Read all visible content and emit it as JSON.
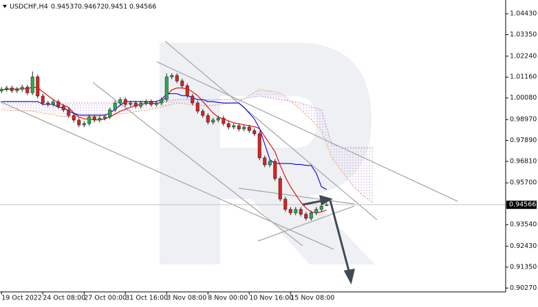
{
  "chart_data": {
    "type": "candlestick",
    "title": "USDCHF,H4",
    "ylim": [
      0.9007,
      1.0514
    ],
    "xlim": [
      -0.3,
      97.7
    ],
    "yticks": [
      {
        "value": 1.0443,
        "label": "1.04430"
      },
      {
        "value": 1.0335,
        "label": "1.03350"
      },
      {
        "value": 1.0224,
        "label": "1.02240"
      },
      {
        "value": 1.0116,
        "label": "1.01160"
      },
      {
        "value": 1.0008,
        "label": "1.00080"
      },
      {
        "value": 0.9897,
        "label": "0.98970"
      },
      {
        "value": 0.9789,
        "label": "0.97890"
      },
      {
        "value": 0.9681,
        "label": "0.96810"
      },
      {
        "value": 0.957,
        "label": "0.95700"
      },
      {
        "value": 0.9354,
        "label": "0.93540"
      },
      {
        "value": 0.9243,
        "label": "0.92430"
      },
      {
        "value": 0.9135,
        "label": "0.91350"
      },
      {
        "value": 0.9027,
        "label": "0.90270"
      }
    ],
    "xticks": [
      {
        "value": 0,
        "label": "19 Oct 2022"
      },
      {
        "value": 8,
        "label": "24 Oct 08:00"
      },
      {
        "value": 16,
        "label": "27 Oct 00:00"
      },
      {
        "value": 24,
        "label": "31 Oct 16:00"
      },
      {
        "value": 32,
        "label": "3 Nov 08:00"
      },
      {
        "value": 40,
        "label": "8 Nov 00:00"
      },
      {
        "value": 48,
        "label": "10 Nov 16:00"
      },
      {
        "value": 56,
        "label": "15 Nov 08:00"
      }
    ],
    "up_color": "#22b14c",
    "down_color": "#e02020",
    "candles": [
      [
        1.0045,
        1.0065,
        1.0033,
        1.0053
      ],
      [
        1.0053,
        1.0072,
        1.0041,
        1.006
      ],
      [
        1.006,
        1.0072,
        1.0034,
        1.0046
      ],
      [
        1.0046,
        1.0065,
        1.0034,
        1.0053
      ],
      [
        1.0053,
        1.0076,
        1.0041,
        1.0064
      ],
      [
        1.0064,
        1.0076,
        1.0023,
        1.0035
      ],
      [
        1.0035,
        1.0145,
        1.0023,
        1.0117
      ],
      [
        1.0117,
        1.0129,
        1.0006,
        1.0018
      ],
      [
        1.0018,
        1.003,
        0.997,
        0.9982
      ],
      [
        0.9982,
        0.9994,
        0.9963,
        0.9975
      ],
      [
        0.9975,
        1.0001,
        0.9963,
        0.9989
      ],
      [
        0.9989,
        1.0001,
        0.9953,
        0.9965
      ],
      [
        0.9965,
        0.9977,
        0.9935,
        0.9947
      ],
      [
        0.9947,
        0.9959,
        0.9906,
        0.9918
      ],
      [
        0.9918,
        0.993,
        0.9882,
        0.9894
      ],
      [
        0.9894,
        0.9906,
        0.9857,
        0.9869
      ],
      [
        0.9869,
        0.9888,
        0.9857,
        0.9876
      ],
      [
        0.9876,
        0.9923,
        0.9864,
        0.9911
      ],
      [
        0.9911,
        0.9923,
        0.9882,
        0.9894
      ],
      [
        0.9894,
        0.9916,
        0.9882,
        0.9904
      ],
      [
        0.9904,
        0.9923,
        0.9892,
        0.9911
      ],
      [
        0.9911,
        0.9959,
        0.9899,
        0.9947
      ],
      [
        0.9947,
        0.9994,
        0.9935,
        0.9982
      ],
      [
        0.9982,
        1.0012,
        0.997,
        1.0
      ],
      [
        1.0,
        1.0012,
        0.9963,
        0.9975
      ],
      [
        0.9975,
        0.9994,
        0.9963,
        0.9982
      ],
      [
        0.9982,
        0.9994,
        0.9953,
        0.9965
      ],
      [
        0.9965,
        0.9994,
        0.9953,
        0.9982
      ],
      [
        0.9982,
        1.0001,
        0.997,
        0.9989
      ],
      [
        0.9989,
        1.0001,
        0.9963,
        0.9975
      ],
      [
        0.9975,
        0.9994,
        0.9963,
        0.9982
      ],
      [
        0.9982,
        1.0012,
        0.997,
        1.0
      ],
      [
        1.0,
        1.0135,
        0.9988,
        1.0117
      ],
      [
        1.0117,
        1.0136,
        1.0105,
        1.0124
      ],
      [
        1.0124,
        1.0136,
        1.0084,
        1.0096
      ],
      [
        1.0096,
        1.0108,
        1.0059,
        1.0071
      ],
      [
        1.0071,
        1.0083,
        1.0006,
        1.0018
      ],
      [
        1.0018,
        1.003,
        0.997,
        0.9982
      ],
      [
        0.9982,
        0.9994,
        0.9928,
        0.994
      ],
      [
        0.994,
        0.9952,
        0.9906,
        0.9918
      ],
      [
        0.9918,
        0.993,
        0.9871,
        0.9883
      ],
      [
        0.9883,
        0.9906,
        0.9871,
        0.9894
      ],
      [
        0.9894,
        0.9916,
        0.9882,
        0.9904
      ],
      [
        0.9904,
        0.9916,
        0.9864,
        0.9876
      ],
      [
        0.9876,
        0.9888,
        0.9846,
        0.9858
      ],
      [
        0.9858,
        0.9877,
        0.9846,
        0.9865
      ],
      [
        0.9865,
        0.9877,
        0.9836,
        0.9848
      ],
      [
        0.9848,
        0.987,
        0.9836,
        0.9858
      ],
      [
        0.9858,
        0.987,
        0.9828,
        0.984
      ],
      [
        0.984,
        0.9852,
        0.9811,
        0.9823
      ],
      [
        0.9823,
        0.9835,
        0.9687,
        0.9699
      ],
      [
        0.9699,
        0.9711,
        0.9651,
        0.9663
      ],
      [
        0.9663,
        0.9693,
        0.9651,
        0.9681
      ],
      [
        0.9681,
        0.9693,
        0.958,
        0.9592
      ],
      [
        0.9592,
        0.9604,
        0.9474,
        0.9486
      ],
      [
        0.9486,
        0.9498,
        0.9421,
        0.9433
      ],
      [
        0.9433,
        0.9445,
        0.9403,
        0.9415
      ],
      [
        0.9415,
        0.9445,
        0.9403,
        0.9433
      ],
      [
        0.9433,
        0.9445,
        0.9396,
        0.9408
      ],
      [
        0.9408,
        0.942,
        0.9375,
        0.9387
      ],
      [
        0.9387,
        0.9427,
        0.9375,
        0.9415
      ],
      [
        0.9415,
        0.9445,
        0.9403,
        0.9433
      ],
      [
        0.9433,
        0.9462,
        0.9421,
        0.945
      ],
      [
        0.94537,
        0.94672,
        0.9451,
        0.94566
      ]
    ],
    "lines": [
      {
        "color": "#e00000",
        "values": [
          1.005,
          1.0052,
          1.0054,
          1.0054,
          1.0056,
          1.0055,
          1.0065,
          1.006,
          1.004,
          1.002,
          1.0,
          0.9985,
          0.997,
          0.996,
          0.993,
          0.991,
          0.99,
          0.99,
          0.9895,
          0.9895,
          0.99,
          0.991,
          0.9925,
          0.994,
          0.995,
          0.996,
          0.997,
          0.9975,
          0.998,
          0.998,
          0.998,
          0.9985,
          1.002,
          1.005,
          1.006,
          1.006,
          1.0055,
          1.004,
          1.002,
          0.999,
          0.996,
          0.993,
          0.991,
          0.99,
          0.989,
          0.988,
          0.9875,
          0.987,
          0.9865,
          0.986,
          0.985,
          0.981,
          0.977,
          0.973,
          0.966,
          0.96,
          0.955,
          0.951,
          0.947,
          0.944,
          0.942,
          0.9415,
          0.942,
          0.943
        ]
      },
      {
        "color": "#0000e0",
        "values": [
          0.999,
          0.999,
          0.999,
          0.999,
          0.999,
          0.999,
          0.999,
          0.999,
          0.9975,
          0.9975,
          0.9975,
          0.996,
          0.996,
          0.994,
          0.993,
          0.992,
          0.992,
          0.992,
          0.992,
          0.992,
          0.992,
          0.993,
          0.995,
          0.997,
          0.999,
          0.999,
          0.999,
          0.999,
          0.999,
          0.999,
          0.999,
          1.0,
          1.003,
          1.003,
          1.003,
          1.002,
          1.002,
          1.001,
          1.0,
          1.0,
          0.999,
          0.999,
          0.9985,
          0.9982,
          0.9982,
          0.9982,
          0.9982,
          0.996,
          0.993,
          0.99,
          0.985,
          0.977,
          0.969,
          0.967,
          0.967,
          0.967,
          0.967,
          0.9665,
          0.9665,
          0.966,
          0.966,
          0.962,
          0.955,
          0.9535
        ]
      }
    ],
    "cloud": {
      "x": [
        0,
        6,
        12,
        18,
        24,
        30,
        34,
        40,
        46,
        50,
        54,
        58,
        62,
        64,
        66,
        68,
        70,
        72
      ],
      "span_a": {
        "color": "#f29a50",
        "values": [
          0.9947,
          0.994,
          0.9911,
          0.9911,
          0.9929,
          0.9954,
          0.9982,
          0.9965,
          0.9989,
          1.0053,
          1.0035,
          0.9947,
          0.984,
          0.9699,
          0.9628,
          0.9557,
          0.9504,
          0.9468
        ]
      },
      "span_b": {
        "color": "#b48cd2",
        "values": [
          0.9982,
          0.9982,
          0.9982,
          0.9982,
          0.9982,
          0.9982,
          1.0,
          1.0,
          1.0,
          1.0018,
          1.0,
          0.9982,
          0.9947,
          0.977,
          0.9752,
          0.9752,
          0.9752,
          0.9752
        ]
      }
    }
  }
}
